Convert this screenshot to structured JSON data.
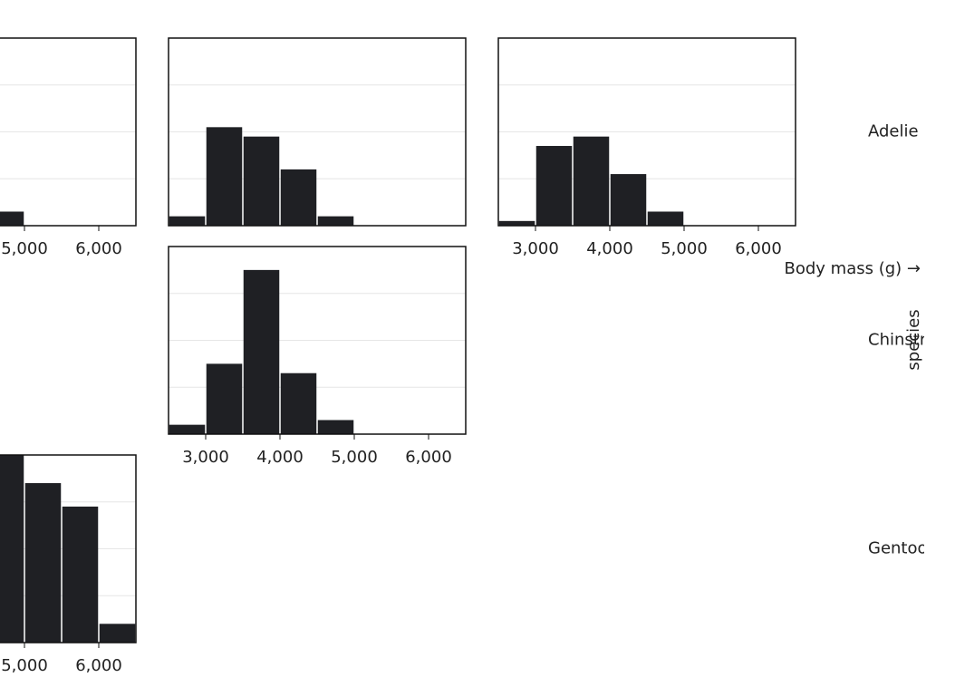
{
  "chart_data": {
    "type": "histogram",
    "x_label": "Body mass (g) →",
    "facet_label": "species",
    "color": "#1f2024",
    "xlim": [
      2500,
      6500
    ],
    "xticks": [
      {
        "value": 3000,
        "label": "3,000"
      },
      {
        "value": 4000,
        "label": "4,000"
      },
      {
        "value": 5000,
        "label": "5,000"
      },
      {
        "value": 6000,
        "label": "6,000"
      }
    ],
    "ylim": [
      0,
      40
    ],
    "yticks": [
      0,
      10,
      20,
      30,
      40
    ],
    "grid": true,
    "rows": [
      {
        "name": "Adelie",
        "panels": [
          {
            "bins": [
              4500,
              5000
            ],
            "values": [
              3
            ]
          },
          {
            "bins": [
              2500,
              3000,
              3500,
              4000,
              4500,
              5000
            ],
            "values": [
              2,
              21,
              19,
              12,
              2
            ]
          },
          {
            "bins": [
              2500,
              3000,
              3500,
              4000,
              4500,
              5000
            ],
            "values": [
              1,
              17,
              19,
              11,
              3
            ]
          }
        ]
      },
      {
        "name": "Chinstrap",
        "panels": [
          null,
          {
            "bins": [
              2500,
              3000,
              3500,
              4000,
              4500,
              5000
            ],
            "values": [
              2,
              15,
              35,
              13,
              3
            ]
          },
          null
        ]
      },
      {
        "name": "Gentoo",
        "panels": [
          {
            "bins": [
              4500,
              5000,
              5500,
              6000,
              6500
            ],
            "values": [
              40,
              34,
              29,
              4
            ]
          },
          null,
          null
        ]
      }
    ]
  }
}
